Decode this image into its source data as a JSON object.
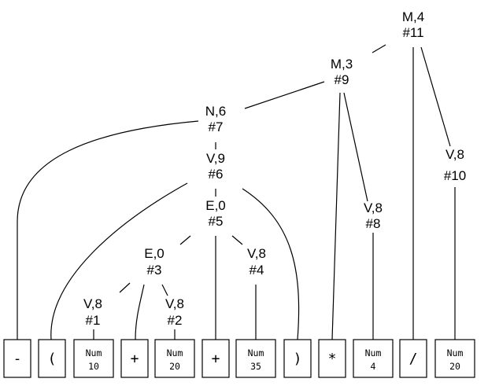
{
  "nodes": {
    "n11": {
      "line1": "M,4",
      "line2": "#11"
    },
    "n9": {
      "line1": "M,3",
      "line2": "#9"
    },
    "n7": {
      "line1": "N,6",
      "line2": "#7"
    },
    "n6": {
      "line1": "V,9",
      "line2": "#6"
    },
    "n5": {
      "line1": "E,0",
      "line2": "#5"
    },
    "n3": {
      "line1": "E,0",
      "line2": "#3"
    },
    "n4": {
      "line1": "V,8",
      "line2": "#4"
    },
    "n1": {
      "line1": "V,8",
      "line2": "#1"
    },
    "n2": {
      "line1": "V,8",
      "line2": "#2"
    },
    "n8": {
      "line1": "V,8",
      "line2": "#8"
    },
    "n10": {
      "line1": "V,8",
      "line2": "#10"
    }
  },
  "tokens": [
    {
      "label": "-"
    },
    {
      "label": "("
    },
    {
      "line1": "Num",
      "line2": "10"
    },
    {
      "label": "+"
    },
    {
      "line1": "Num",
      "line2": "20"
    },
    {
      "label": "+"
    },
    {
      "line1": "Num",
      "line2": "35"
    },
    {
      "label": ")"
    },
    {
      "label": "*"
    },
    {
      "line1": "Num",
      "line2": "4"
    },
    {
      "label": "/"
    },
    {
      "line1": "Num",
      "line2": "20"
    }
  ]
}
